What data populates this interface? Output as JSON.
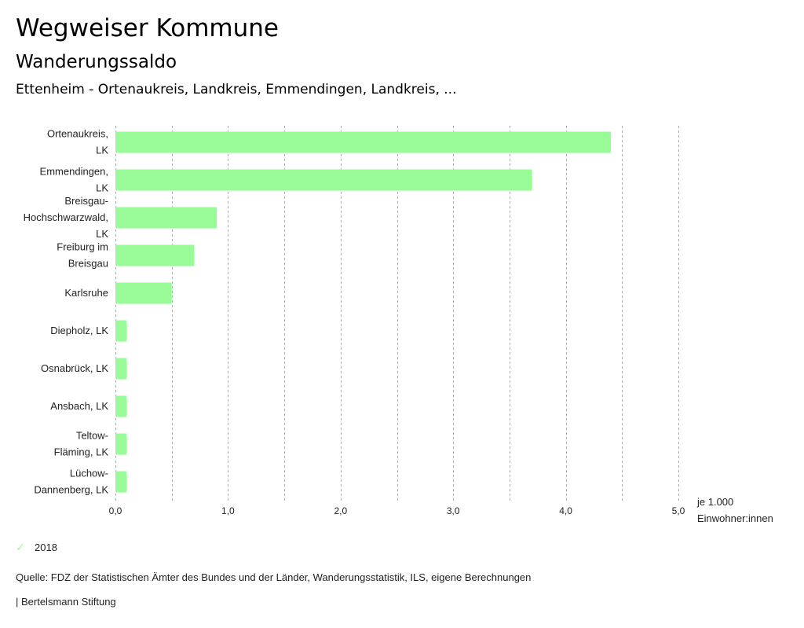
{
  "header": {
    "title": "Wegweiser Kommune",
    "subtitle": "Wanderungssaldo",
    "region": "Ettenheim - Ortenaukreis, Landkreis, Emmendingen, Landkreis, ..."
  },
  "chart_data": {
    "type": "bar",
    "orientation": "horizontal",
    "categories": [
      [
        "Ortenaukreis,",
        "LK"
      ],
      [
        "Emmendingen,",
        "LK"
      ],
      [
        "Breisgau-",
        "Hochschwarzwald,",
        "LK"
      ],
      [
        "Freiburg im",
        "Breisgau"
      ],
      [
        "Karlsruhe"
      ],
      [
        "Diepholz, LK"
      ],
      [
        "Osnabrück, LK"
      ],
      [
        "Ansbach, LK"
      ],
      [
        "Teltow-",
        "Fläming, LK"
      ],
      [
        "Lüchow-",
        "Dannenberg, LK"
      ]
    ],
    "series": [
      {
        "name": "2018",
        "color": "#98fb98",
        "values": [
          4.4,
          3.7,
          0.9,
          0.7,
          0.5,
          0.1,
          0.1,
          0.1,
          0.1,
          0.1
        ]
      }
    ],
    "xlim": [
      0,
      5
    ],
    "x_ticks": [
      0,
      1,
      2,
      3,
      4,
      5
    ],
    "x_tick_labels": [
      "0,0",
      "1,0",
      "2,0",
      "3,0",
      "4,0",
      "5,0"
    ],
    "grid_step": 0.5,
    "grid": true,
    "xlabel_lines": [
      "je 1.000",
      "Einwohner:innen"
    ],
    "legend_position": "bottom-left"
  },
  "legend": {
    "items": [
      {
        "label": "2018",
        "icon": "check-icon",
        "color": "#98fb98"
      }
    ]
  },
  "footer": {
    "source": "Quelle: FDZ der Statistischen Ämter des Bundes und der Länder, Wanderungsstatistik, ILS, eigene Berechnungen",
    "brand": "| Bertelsmann Stiftung"
  }
}
